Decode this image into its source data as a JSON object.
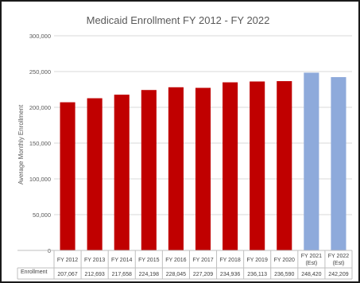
{
  "chart_data": {
    "type": "bar",
    "title": "Medicaid Enrollment FY 2012 - FY 2022",
    "ylabel": "Average Monthly Enrollment",
    "ylim": [
      0,
      300000
    ],
    "yticks": [
      "0",
      "50,000",
      "100,000",
      "150,000",
      "200,000",
      "250,000",
      "300,000"
    ],
    "ytick_values": [
      0,
      50000,
      100000,
      150000,
      200000,
      250000,
      300000
    ],
    "grid": true,
    "categories": [
      [
        "FY 2012"
      ],
      [
        "FY 2013"
      ],
      [
        "FY 2014"
      ],
      [
        "FY 2015"
      ],
      [
        "FY 2016"
      ],
      [
        "FY 2017"
      ],
      [
        "FY 2018"
      ],
      [
        "FY 2019"
      ],
      [
        "FY 2020"
      ],
      [
        "FY 2021",
        "(Est)"
      ],
      [
        "FY 2022",
        "(Est)"
      ]
    ],
    "values": [
      207067,
      212693,
      217658,
      224198,
      228045,
      227209,
      234936,
      236113,
      236590,
      248420,
      242209
    ],
    "value_labels": [
      "207,067",
      "212,693",
      "217,658",
      "224,198",
      "228,045",
      "227,209",
      "234,936",
      "236,113",
      "236,590",
      "248,420",
      "242,209"
    ],
    "bar_colors": [
      "#c00000",
      "#c00000",
      "#c00000",
      "#c00000",
      "#c00000",
      "#c00000",
      "#c00000",
      "#c00000",
      "#c00000",
      "#8eaadb",
      "#8eaadb"
    ],
    "table_row_label": "Enrollment",
    "colors": {
      "actual": "#c00000",
      "estimate": "#8eaadb",
      "grid": "#d9d9d9",
      "text": "#595959"
    }
  }
}
